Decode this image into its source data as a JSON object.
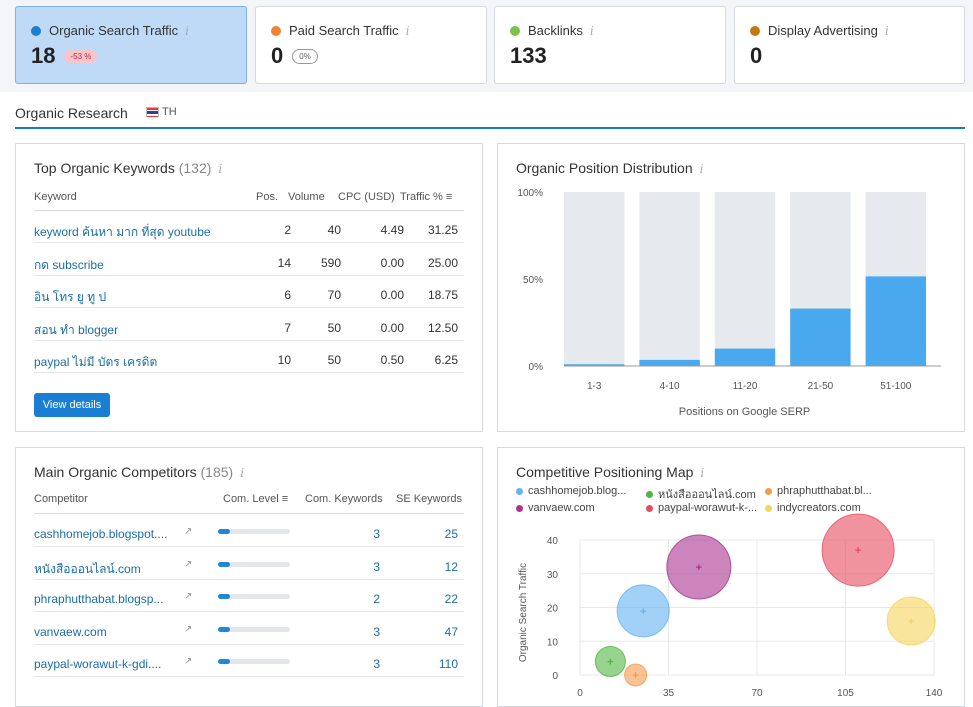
{
  "metrics": [
    {
      "label": "Organic Search Traffic",
      "value": "18",
      "change": "-53 %",
      "color": "#1d7fcb"
    },
    {
      "label": "Paid Search Traffic",
      "value": "0",
      "change": "0%",
      "color": "#f08234"
    },
    {
      "label": "Backlinks",
      "value": "133",
      "color": "#7cc04e"
    },
    {
      "label": "Display Advertising",
      "value": "0",
      "color": "#c07a10"
    }
  ],
  "section": {
    "title": "Organic Research",
    "country": "TH"
  },
  "keywords": {
    "title": "Top Organic Keywords",
    "count": "(132)",
    "headers": [
      "Keyword",
      "Pos.",
      "Volume",
      "CPC (USD)",
      "Traffic %"
    ],
    "rows": [
      {
        "keyword": "keyword ค้นหา มาก ที่สุด youtube",
        "pos": "2",
        "volume": "40",
        "cpc": "4.49",
        "traffic": "31.25"
      },
      {
        "keyword": "กด subscribe",
        "pos": "14",
        "volume": "590",
        "cpc": "0.00",
        "traffic": "25.00"
      },
      {
        "keyword": "อิน โทร ยู ทู ป",
        "pos": "6",
        "volume": "70",
        "cpc": "0.00",
        "traffic": "18.75"
      },
      {
        "keyword": "สอน ทำ blogger",
        "pos": "7",
        "volume": "50",
        "cpc": "0.00",
        "traffic": "12.50"
      },
      {
        "keyword": "paypal ไม่มี บัตร เครดิต",
        "pos": "10",
        "volume": "50",
        "cpc": "0.50",
        "traffic": "6.25"
      }
    ],
    "button": "View details"
  },
  "competitors": {
    "title": "Main Organic Competitors",
    "count": "(185)",
    "headers": [
      "Competitor",
      "Com. Level",
      "Com. Keywords",
      "SE Keywords"
    ],
    "rows": [
      {
        "name": "cashhomejob.blogspot....",
        "level": 0.17,
        "com": "3",
        "se": "25"
      },
      {
        "name": "หนังสือออนไลน์.com",
        "level": 0.17,
        "com": "3",
        "se": "12"
      },
      {
        "name": "phraphutthabat.blogsp...",
        "level": 0.17,
        "com": "2",
        "se": "22"
      },
      {
        "name": "vanvaew.com",
        "level": 0.17,
        "com": "3",
        "se": "47"
      },
      {
        "name": "paypal-worawut-k-gdi....",
        "level": 0.17,
        "com": "3",
        "se": "110"
      }
    ]
  },
  "chart_data": [
    {
      "type": "bar",
      "title": "Organic Position Distribution",
      "xlabel": "Positions on Google SERP",
      "ylabel": "",
      "ylim": [
        0,
        100
      ],
      "yticks": [
        "0%",
        "50%",
        "100%"
      ],
      "categories": [
        "1-3",
        "4-10",
        "11-20",
        "21-50",
        "51-100"
      ],
      "values": [
        1,
        3.5,
        10,
        33,
        51.5
      ],
      "bar_color": "#4aa8ef",
      "bg_color": "#e6e9ed"
    },
    {
      "type": "scatter",
      "title": "Competitive Positioning Map",
      "ylabel": "Organic Search Traffic",
      "xticks": [
        "0",
        "35",
        "70",
        "105",
        "140"
      ],
      "yticks": [
        "0",
        "10",
        "20",
        "30",
        "40"
      ],
      "xlim": [
        0,
        140
      ],
      "ylim": [
        0,
        40
      ],
      "series": [
        {
          "name": "cashhomejob.blog...",
          "x": 25,
          "y": 19,
          "size": 26,
          "color": "#63b3f0"
        },
        {
          "name": "หนังสือออนไลน์.com",
          "x": 12,
          "y": 4,
          "size": 15,
          "color": "#51b545"
        },
        {
          "name": "phraphutthabat.bl...",
          "x": 22,
          "y": 0,
          "size": 11,
          "color": "#f39a4b"
        },
        {
          "name": "vanvaew.com",
          "x": 47,
          "y": 32,
          "size": 32,
          "color": "#a8348f"
        },
        {
          "name": "paypal-worawut-k-...",
          "x": 110,
          "y": 37,
          "size": 36,
          "color": "#e84a5f"
        },
        {
          "name": "indycreators.com",
          "x": 131,
          "y": 16,
          "size": 24,
          "color": "#f6d35c"
        }
      ]
    }
  ]
}
